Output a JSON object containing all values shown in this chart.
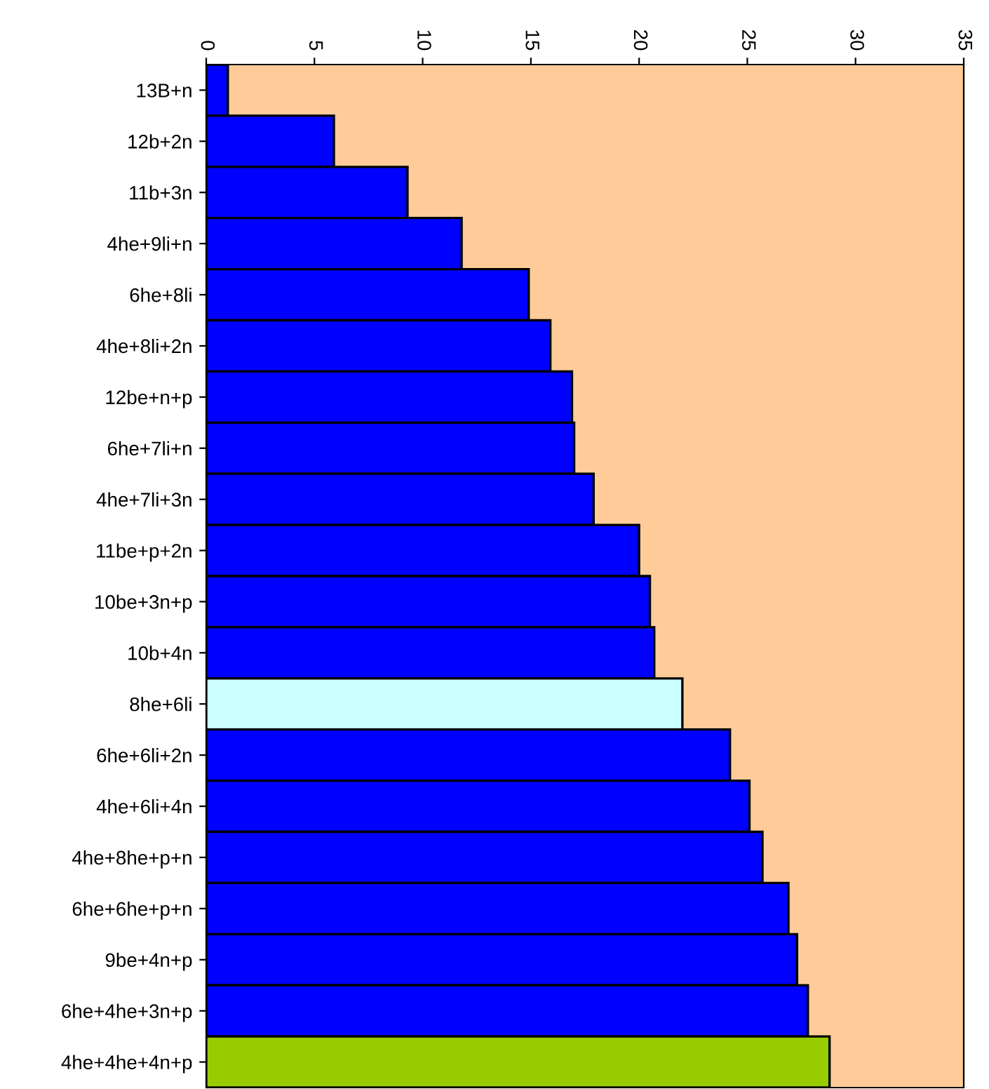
{
  "chart_data": {
    "type": "bar",
    "orientation": "horizontal",
    "categories": [
      "13B+n",
      "12b+2n",
      "11b+3n",
      "4he+9li+n",
      "6he+8li",
      "4he+8li+2n",
      "12be+n+p",
      "6he+7li+n",
      "4he+7li+3n",
      "11be+p+2n",
      "10be+3n+p",
      "10b+4n",
      "8he+6li",
      "6he+6li+2n",
      "4he+6li+4n",
      "4he+8he+p+n",
      "6he+6he+p+n",
      "9be+4n+p",
      "6he+4he+3n+p",
      "4he+4he+4n+p"
    ],
    "values": [
      1.0,
      5.9,
      9.3,
      11.8,
      14.9,
      15.9,
      16.9,
      17.0,
      17.9,
      20.0,
      20.5,
      20.7,
      22.0,
      24.2,
      25.1,
      25.7,
      26.9,
      27.3,
      27.8,
      28.8
    ],
    "colors": [
      "#0000ff",
      "#0000ff",
      "#0000ff",
      "#0000ff",
      "#0000ff",
      "#0000ff",
      "#0000ff",
      "#0000ff",
      "#0000ff",
      "#0000ff",
      "#0000ff",
      "#0000ff",
      "#ccffff",
      "#0000ff",
      "#0000ff",
      "#0000ff",
      "#0000ff",
      "#0000ff",
      "#0000ff",
      "#99cc00"
    ],
    "xlim": [
      0,
      35
    ],
    "xticks": [
      0,
      5,
      10,
      15,
      20,
      25,
      30,
      35
    ],
    "grid": false,
    "legend": false
  }
}
